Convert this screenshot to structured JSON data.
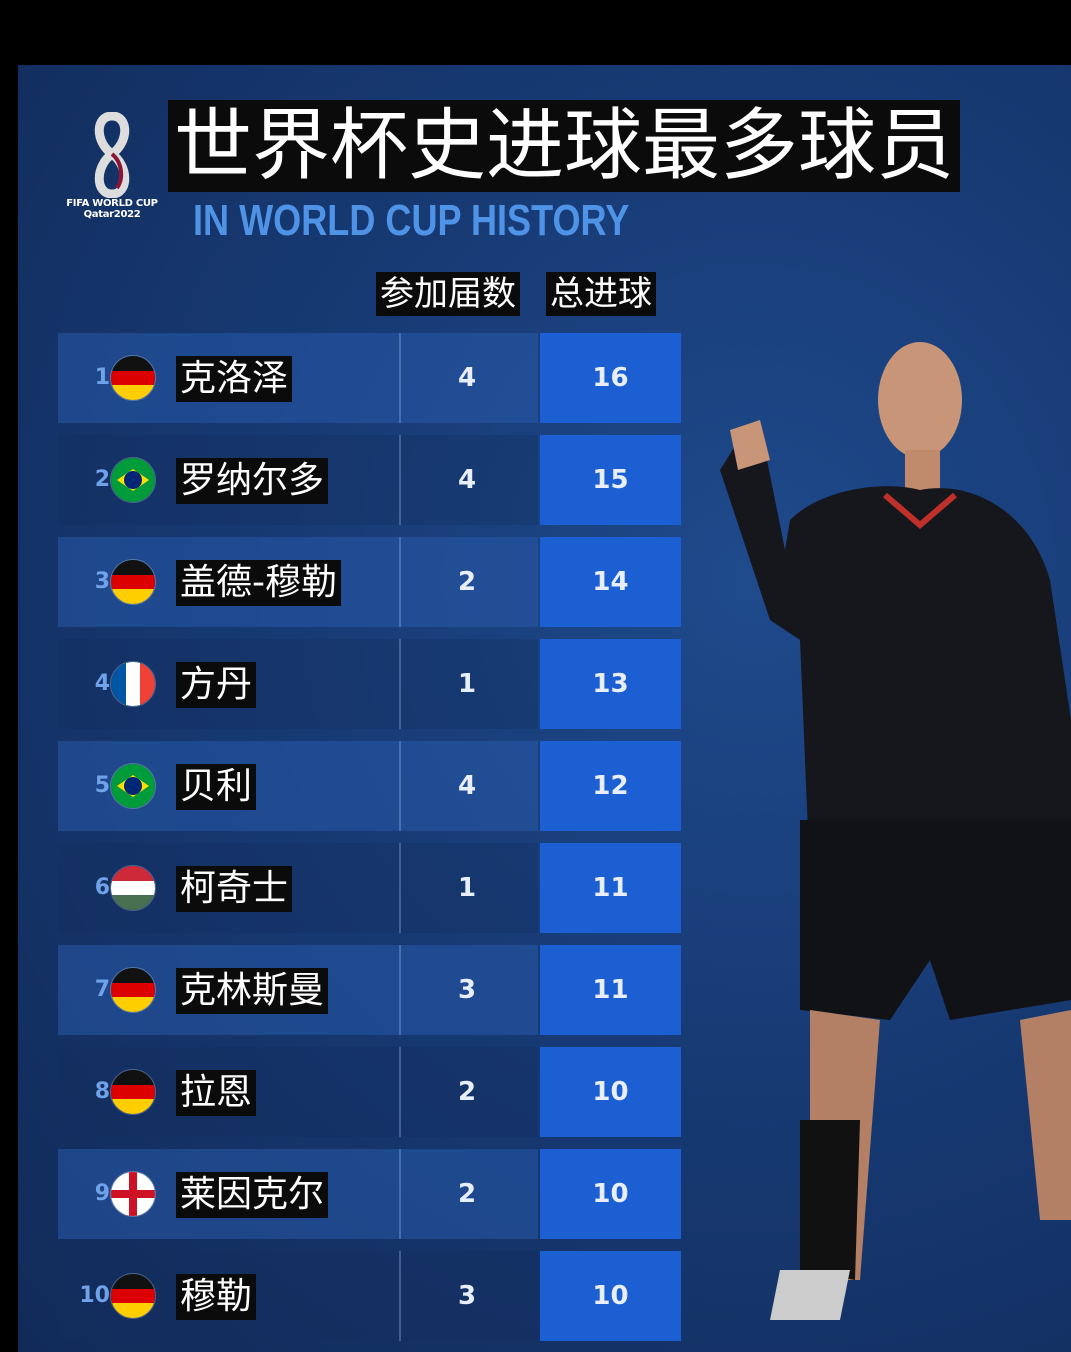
{
  "logo": {
    "line1": "FIFA WORLD CUP",
    "line2": "Qatar2022"
  },
  "title": "世界杯史进球最多球员",
  "subtitle": "IN WORLD CUP HISTORY",
  "chart_data": {
    "type": "table",
    "title": "世界杯史进球最多球员",
    "subtitle": "IN WORLD CUP HISTORY",
    "columns": [
      "参加届数",
      "总进球"
    ],
    "rows": [
      {
        "rank": "1",
        "flag": "germany-flag",
        "name": "克洛泽",
        "apps": "4",
        "goals": "16"
      },
      {
        "rank": "2",
        "flag": "brazil-flag",
        "name": "罗纳尔多",
        "apps": "4",
        "goals": "15"
      },
      {
        "rank": "3",
        "flag": "germany-flag",
        "name": "盖德-穆勒",
        "apps": "2",
        "goals": "14"
      },
      {
        "rank": "4",
        "flag": "france-flag",
        "name": "方丹",
        "apps": "1",
        "goals": "13"
      },
      {
        "rank": "5",
        "flag": "brazil-flag",
        "name": "贝利",
        "apps": "4",
        "goals": "12"
      },
      {
        "rank": "6",
        "flag": "hungary-flag",
        "name": "柯奇士",
        "apps": "1",
        "goals": "11"
      },
      {
        "rank": "7",
        "flag": "germany-flag",
        "name": "克林斯曼",
        "apps": "3",
        "goals": "11"
      },
      {
        "rank": "8",
        "flag": "germany-flag",
        "name": "拉恩",
        "apps": "2",
        "goals": "10"
      },
      {
        "rank": "9",
        "flag": "england-flag",
        "name": "莱因克尔",
        "apps": "2",
        "goals": "10"
      },
      {
        "rank": "10",
        "flag": "germany-flag",
        "name": "穆勒",
        "apps": "3",
        "goals": "10"
      }
    ]
  },
  "colors": {
    "goals_box": "#1b5fd3",
    "subtitle": "#4f93e6",
    "background": "#173a74"
  }
}
